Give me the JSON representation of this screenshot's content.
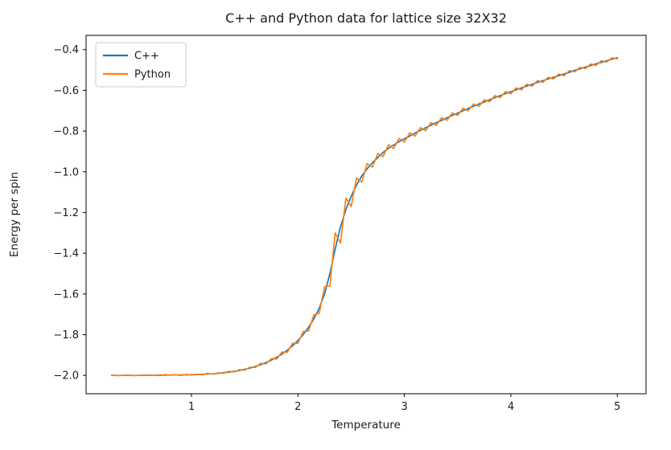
{
  "chart_data": {
    "type": "line",
    "title": "C++ and Python data for lattice size 32X32",
    "xlabel": "Temperature",
    "ylabel": "Energy per spin",
    "xlim": [
      0.01,
      5.27
    ],
    "ylim": [
      -2.09,
      -0.33
    ],
    "grid": false,
    "legend_position": "upper left",
    "xticks": {
      "values": [
        1,
        2,
        3,
        4,
        5
      ],
      "labels": [
        "1",
        "2",
        "3",
        "4",
        "5"
      ]
    },
    "yticks": {
      "values": [
        -2.0,
        -1.8,
        -1.6,
        -1.4,
        -1.2,
        -1.0,
        -0.8,
        -0.6,
        -0.4
      ],
      "labels": [
        "−2.0",
        "−1.8",
        "−1.6",
        "−1.4",
        "−1.2",
        "−1.0",
        "−0.8",
        "−0.6",
        "−0.4"
      ]
    },
    "x": [
      0.25,
      0.3,
      0.35,
      0.4,
      0.45,
      0.5,
      0.55,
      0.6,
      0.65,
      0.7,
      0.75,
      0.8,
      0.85,
      0.9,
      0.95,
      1.0,
      1.05,
      1.1,
      1.15,
      1.2,
      1.25,
      1.3,
      1.35,
      1.4,
      1.45,
      1.5,
      1.55,
      1.6,
      1.65,
      1.7,
      1.75,
      1.8,
      1.85,
      1.9,
      1.95,
      2.0,
      2.05,
      2.1,
      2.15,
      2.2,
      2.25,
      2.3,
      2.35,
      2.4,
      2.45,
      2.5,
      2.55,
      2.6,
      2.65,
      2.7,
      2.75,
      2.8,
      2.85,
      2.9,
      2.95,
      3.0,
      3.05,
      3.1,
      3.15,
      3.2,
      3.25,
      3.3,
      3.35,
      3.4,
      3.45,
      3.5,
      3.55,
      3.6,
      3.65,
      3.7,
      3.75,
      3.8,
      3.85,
      3.9,
      3.95,
      4.0,
      4.05,
      4.1,
      4.15,
      4.2,
      4.25,
      4.3,
      4.35,
      4.4,
      4.45,
      4.5,
      4.55,
      4.6,
      4.65,
      4.7,
      4.75,
      4.8,
      4.85,
      4.9,
      4.95,
      5.0
    ],
    "series": [
      {
        "name": "C++",
        "color": "#1f77b4",
        "values": [
          -2.0,
          -2.0,
          -2.0,
          -2.0,
          -2.0,
          -2.0,
          -2.0,
          -1.999,
          -1.999,
          -1.999,
          -1.999,
          -1.998,
          -1.998,
          -1.998,
          -1.997,
          -1.997,
          -1.996,
          -1.995,
          -1.993,
          -1.992,
          -1.99,
          -1.987,
          -1.984,
          -1.98,
          -1.976,
          -1.97,
          -1.964,
          -1.956,
          -1.947,
          -1.937,
          -1.925,
          -1.911,
          -1.895,
          -1.876,
          -1.854,
          -1.829,
          -1.799,
          -1.764,
          -1.722,
          -1.67,
          -1.6,
          -1.5,
          -1.38,
          -1.27,
          -1.185,
          -1.12,
          -1.065,
          -1.02,
          -0.985,
          -0.955,
          -0.93,
          -0.905,
          -0.885,
          -0.868,
          -0.852,
          -0.838,
          -0.824,
          -0.81,
          -0.797,
          -0.784,
          -0.771,
          -0.759,
          -0.747,
          -0.735,
          -0.723,
          -0.712,
          -0.7,
          -0.689,
          -0.678,
          -0.667,
          -0.657,
          -0.646,
          -0.636,
          -0.626,
          -0.616,
          -0.607,
          -0.597,
          -0.588,
          -0.579,
          -0.57,
          -0.561,
          -0.553,
          -0.544,
          -0.536,
          -0.528,
          -0.52,
          -0.511,
          -0.502,
          -0.494,
          -0.486,
          -0.478,
          -0.47,
          -0.462,
          -0.455,
          -0.447,
          -0.44
        ]
      },
      {
        "name": "Python",
        "color": "#ff7f0e",
        "values": [
          -1.999,
          -2.001,
          -2.0,
          -1.999,
          -2.001,
          -2.0,
          -1.999,
          -2.0,
          -1.998,
          -2.001,
          -1.997,
          -1.999,
          -1.997,
          -2.0,
          -1.995,
          -1.998,
          -1.994,
          -1.997,
          -1.99,
          -1.994,
          -1.987,
          -1.99,
          -1.98,
          -1.983,
          -1.972,
          -1.974,
          -1.959,
          -1.961,
          -1.941,
          -1.943,
          -1.918,
          -1.919,
          -1.885,
          -1.886,
          -1.842,
          -1.842,
          -1.784,
          -1.782,
          -1.702,
          -1.695,
          -1.565,
          -1.56,
          -1.3,
          -1.35,
          -1.13,
          -1.17,
          -1.03,
          -1.05,
          -0.96,
          -0.977,
          -0.91,
          -0.925,
          -0.867,
          -0.886,
          -0.836,
          -0.854,
          -0.809,
          -0.825,
          -0.783,
          -0.798,
          -0.758,
          -0.772,
          -0.734,
          -0.747,
          -0.711,
          -0.724,
          -0.688,
          -0.7,
          -0.667,
          -0.678,
          -0.646,
          -0.656,
          -0.626,
          -0.636,
          -0.606,
          -0.617,
          -0.588,
          -0.597,
          -0.57,
          -0.579,
          -0.552,
          -0.561,
          -0.536,
          -0.544,
          -0.52,
          -0.528,
          -0.503,
          -0.509,
          -0.487,
          -0.493,
          -0.471,
          -0.477,
          -0.455,
          -0.461,
          -0.441,
          -0.445
        ]
      }
    ]
  }
}
